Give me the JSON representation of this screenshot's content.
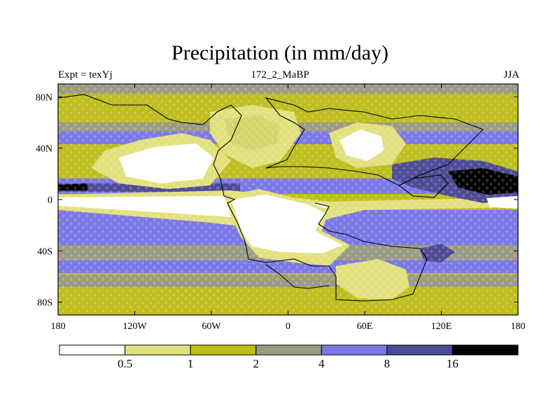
{
  "title": "Precipitation (in mm/day)",
  "subtitle_left": "Expt = texYj",
  "subtitle_center": "172_2_MaBP",
  "subtitle_right": "JJA",
  "map": {
    "projection": "cylindrical-equidistant",
    "lon_range": [
      -180,
      180
    ],
    "lat_range": [
      -90,
      90
    ],
    "x_ticks": [
      {
        "value": -180,
        "label": "180"
      },
      {
        "value": -120,
        "label": "120W"
      },
      {
        "value": -60,
        "label": "60W"
      },
      {
        "value": 0,
        "label": "0"
      },
      {
        "value": 60,
        "label": "60E"
      },
      {
        "value": 120,
        "label": "120E"
      },
      {
        "value": 180,
        "label": "180"
      }
    ],
    "y_ticks": [
      {
        "value": 80,
        "label": "80N"
      },
      {
        "value": 40,
        "label": "40N"
      },
      {
        "value": 0,
        "label": "0"
      },
      {
        "value": -40,
        "label": "40S"
      },
      {
        "value": -80,
        "label": "80S"
      }
    ],
    "grid": false
  },
  "colorbar": {
    "colors": [
      "#ffffff",
      "#e2e07c",
      "#bdbd1c",
      "#9a9a84",
      "#7a78e6",
      "#4c4a94",
      "#000000"
    ],
    "labels": [
      "0.5",
      "1",
      "2",
      "4",
      "8",
      "16"
    ],
    "levels": [
      0.5,
      1,
      2,
      4,
      8,
      16
    ]
  }
}
